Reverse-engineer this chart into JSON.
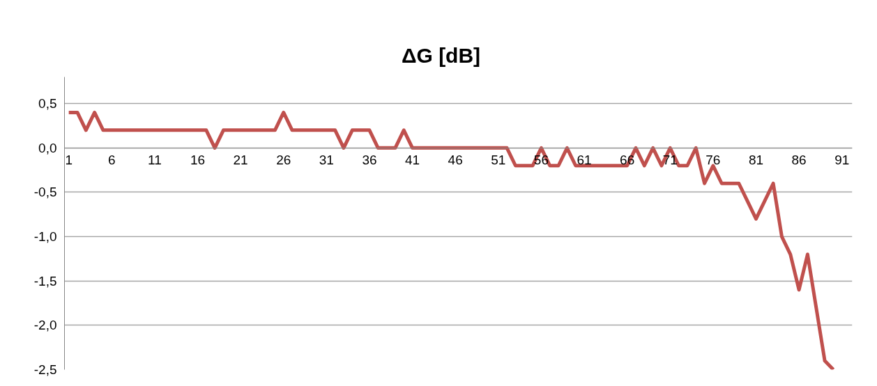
{
  "chart_data": {
    "type": "line",
    "title": "ΔG       [dB]",
    "x": [
      1,
      2,
      3,
      4,
      5,
      6,
      7,
      8,
      9,
      10,
      11,
      12,
      13,
      14,
      15,
      16,
      17,
      18,
      19,
      20,
      21,
      22,
      23,
      24,
      25,
      26,
      27,
      28,
      29,
      30,
      31,
      32,
      33,
      34,
      35,
      36,
      37,
      38,
      39,
      40,
      41,
      42,
      43,
      44,
      45,
      46,
      47,
      48,
      49,
      50,
      51,
      52,
      53,
      54,
      55,
      56,
      57,
      58,
      59,
      60,
      61,
      62,
      63,
      64,
      65,
      66,
      67,
      68,
      69,
      70,
      71,
      72,
      73,
      74,
      75,
      76,
      77,
      78,
      79,
      80,
      81,
      82,
      83,
      84,
      85,
      86,
      87,
      88,
      89,
      90
    ],
    "series": [
      {
        "color": "#c0504d",
        "values": [
          0.4,
          0.4,
          0.2,
          0.4,
          0.2,
          0.2,
          0.2,
          0.2,
          0.2,
          0.2,
          0.2,
          0.2,
          0.2,
          0.2,
          0.2,
          0.2,
          0.2,
          0.0,
          0.2,
          0.2,
          0.2,
          0.2,
          0.2,
          0.2,
          0.2,
          0.4,
          0.2,
          0.2,
          0.2,
          0.2,
          0.2,
          0.2,
          0.0,
          0.2,
          0.2,
          0.2,
          0.0,
          0.0,
          0.0,
          0.2,
          0.0,
          0.0,
          0.0,
          0.0,
          0.0,
          0.0,
          0.0,
          0.0,
          0.0,
          0.0,
          0.0,
          0.0,
          -0.2,
          -0.2,
          -0.2,
          0.0,
          -0.2,
          -0.2,
          0.0,
          -0.2,
          -0.2,
          -0.2,
          -0.2,
          -0.2,
          -0.2,
          -0.2,
          0.0,
          -0.2,
          0.0,
          -0.2,
          0.0,
          -0.2,
          -0.2,
          0.0,
          -0.4,
          -0.2,
          -0.4,
          -0.4,
          -0.4,
          -0.6,
          -0.8,
          -0.6,
          -0.4,
          -1.0,
          -1.2,
          -1.6,
          -1.2,
          -1.8,
          -2.4,
          -2.5
        ]
      }
    ],
    "xlim": [
      0.5,
      92.2
    ],
    "xticks": [
      1,
      6,
      11,
      16,
      21,
      26,
      31,
      36,
      41,
      46,
      51,
      56,
      61,
      66,
      71,
      76,
      81,
      86,
      91
    ],
    "ylim": [
      -2.5,
      0.8
    ],
    "yticks": [
      {
        "value": 0.5,
        "label": "0,5"
      },
      {
        "value": 0.0,
        "label": "0,0"
      },
      {
        "value": -0.5,
        "label": "-0,5"
      },
      {
        "value": -1.0,
        "label": "-1,0"
      },
      {
        "value": -1.5,
        "label": "-1,5"
      },
      {
        "value": -2.0,
        "label": "-2,0"
      },
      {
        "value": -2.5,
        "label": "-2,5"
      }
    ],
    "grid": "y",
    "line_style": "solid",
    "marker": "none"
  }
}
